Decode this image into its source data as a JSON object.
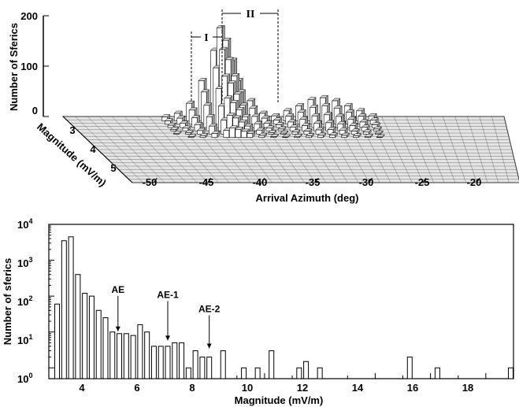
{
  "chart_data": [
    {
      "type": "bar3d",
      "title": "",
      "xlabel": "Arrival Azimuth (deg)",
      "ylabel": "Magnitude (mV/m)",
      "zlabel": "Number of Sferics",
      "x_ticks": [
        "-50",
        "-45",
        "-40",
        "-35",
        "-30",
        "-25",
        "-20"
      ],
      "y_ticks": [
        "3",
        "4",
        "5"
      ],
      "z_ticks": [
        "0",
        "100",
        "200"
      ],
      "xlim": [
        -52,
        -16
      ],
      "ylim": [
        2.5,
        5.5
      ],
      "zlim": [
        0,
        200
      ],
      "regions": [
        {
          "label": "I",
          "azimuth_range": [
            -46,
            -42
          ]
        },
        {
          "label": "II",
          "azimuth_range": [
            -42,
            -37
          ]
        }
      ],
      "peak_profile": {
        "azimuth": [
          -44,
          -43,
          -42,
          -41,
          -40,
          -39.5,
          -39,
          -38.5,
          -38,
          -37,
          -36,
          -35,
          -34,
          -33,
          -32,
          -31,
          -30,
          -29,
          -28,
          -27
        ],
        "count": [
          8,
          15,
          35,
          80,
          140,
          185,
          160,
          120,
          80,
          40,
          15,
          10,
          20,
          30,
          42,
          46,
          40,
          30,
          20,
          10
        ]
      }
    },
    {
      "type": "bar",
      "title": "",
      "xlabel": "Magnitude (mV/m)",
      "ylabel": "Number of sferics",
      "yscale": "log",
      "xlim": [
        2.2,
        19
      ],
      "ylim": [
        0.5,
        10000
      ],
      "x_ticks": [
        "4",
        "6",
        "8",
        "10",
        "12",
        "14",
        "16",
        "18"
      ],
      "y_ticks": [
        {
          "base": "10",
          "exp": "0"
        },
        {
          "base": "10",
          "exp": "1"
        },
        {
          "base": "10",
          "exp": "2"
        },
        {
          "base": "10",
          "exp": "3"
        },
        {
          "base": "10",
          "exp": "4"
        }
      ],
      "x": [
        2.5,
        2.75,
        3.0,
        3.25,
        3.5,
        3.75,
        4.0,
        4.25,
        4.5,
        4.75,
        5.0,
        5.25,
        5.5,
        5.75,
        6.0,
        6.25,
        6.5,
        6.75,
        7.0,
        7.25,
        7.5,
        7.75,
        8.0,
        8.5,
        9.25,
        9.75,
        10.25,
        11.25,
        11.5,
        12.0,
        15.25,
        16.25,
        18.9
      ],
      "values": [
        60,
        3500,
        4500,
        400,
        120,
        100,
        40,
        25,
        10,
        9,
        9,
        8,
        16,
        10,
        4,
        4,
        4,
        5,
        5,
        1,
        3,
        2,
        2,
        3,
        1,
        1,
        3,
        1,
        1.5,
        1,
        2,
        1,
        1
      ],
      "annotations": [
        {
          "text": "AE",
          "x": 4.7,
          "y": 9
        },
        {
          "text": "AE-1",
          "x": 6.5,
          "y": 5
        },
        {
          "text": "AE-2",
          "x": 8.0,
          "y": 3
        }
      ]
    }
  ]
}
